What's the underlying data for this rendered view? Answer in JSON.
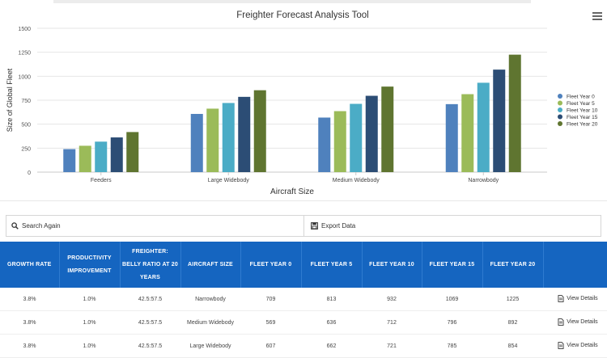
{
  "chart_data": {
    "type": "bar",
    "title": "Freighter Forecast Analysis Tool",
    "xlabel": "Aircraft Size",
    "ylabel": "Size of Global Fleet",
    "ylim": [
      0,
      1500
    ],
    "yticks": [
      0,
      250,
      500,
      750,
      1000,
      1250,
      1500
    ],
    "categories": [
      "Feeders",
      "Large Widebody",
      "Medium Widebody",
      "Narrowbody"
    ],
    "series": [
      {
        "name": "Fleet Year 0",
        "color": "#4f81bd",
        "values": [
          240,
          607,
          569,
          709
        ]
      },
      {
        "name": "Fleet Year 5",
        "color": "#9bbb59",
        "values": [
          275,
          662,
          636,
          813
        ]
      },
      {
        "name": "Fleet Year 10",
        "color": "#4bacc6",
        "values": [
          318,
          721,
          712,
          932
        ]
      },
      {
        "name": "Fleet Year 15",
        "color": "#2c4d75",
        "values": [
          362,
          785,
          796,
          1069
        ]
      },
      {
        "name": "Fleet Year 20",
        "color": "#5f7530",
        "values": [
          418,
          854,
          892,
          1225
        ]
      }
    ],
    "grid": true,
    "legend_position": "right"
  },
  "actions": {
    "search_label": "Search Again",
    "export_label": "Export Data"
  },
  "table": {
    "headers": [
      "GROWTH RATE",
      "PRODUCTIVITY IMPROVEMENT",
      "FREIGHTER: BELLY RATIO AT 20 YEARS",
      "AIRCRAFT SIZE",
      "FLEET YEAR 0",
      "FLEET YEAR 5",
      "FLEET YEAR 10",
      "FLEET YEAR 15",
      "FLEET YEAR 20",
      ""
    ],
    "rows": [
      [
        "3.8%",
        "1.0%",
        "42.5:57.5",
        "Narrowbody",
        "709",
        "813",
        "932",
        "1069",
        "1225"
      ],
      [
        "3.8%",
        "1.0%",
        "42.5:57.5",
        "Medium Widebody",
        "569",
        "636",
        "712",
        "796",
        "892"
      ],
      [
        "3.8%",
        "1.0%",
        "42.5:57.5",
        "Large Widebody",
        "607",
        "662",
        "721",
        "785",
        "854"
      ]
    ],
    "details_label": "View Details"
  }
}
